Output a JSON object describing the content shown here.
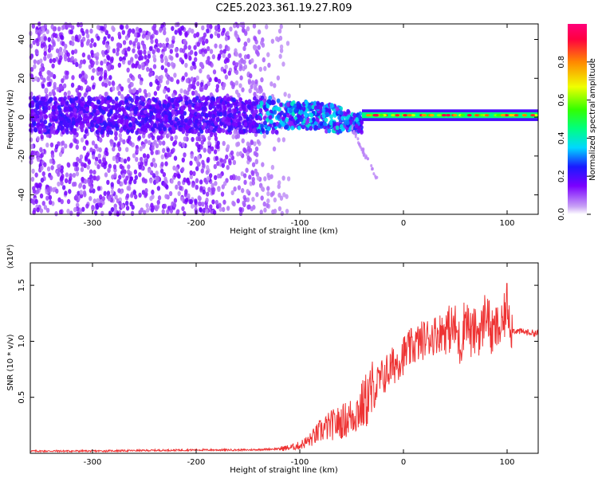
{
  "title": "C2E5.2023.361.19.27.R09",
  "chart_data": [
    {
      "type": "heatmap",
      "xlabel": "Height of straight line (km)",
      "ylabel": "Frequency (Hz)",
      "xlim": [
        -360,
        130
      ],
      "ylim": [
        -50,
        48
      ],
      "xticks": [
        -300,
        -200,
        -100,
        0,
        100
      ],
      "yticks": [
        -40,
        -20,
        0,
        20,
        40
      ],
      "colorbar": {
        "label": "Normalized spectral amplitude",
        "range": [
          0,
          1
        ],
        "ticks": [
          0.0,
          0.2,
          0.4,
          0.6,
          0.8
        ]
      },
      "features": {
        "band_center_hz": 1,
        "broad_noise_x_range": [
          -360,
          -120
        ],
        "transition_x": [
          -120,
          -40
        ],
        "narrow_band_x_range": [
          -40,
          130
        ]
      }
    },
    {
      "type": "line",
      "xlabel": "Height of straight line (km)",
      "ylabel": "SNR (10 * v/v)",
      "yexponent": "(x10⁴)",
      "xlim": [
        -360,
        130
      ],
      "ylim": [
        0,
        1.7
      ],
      "xticks": [
        -300,
        -200,
        -100,
        0,
        100
      ],
      "yticks": [
        0.5,
        1.0,
        1.5
      ],
      "color": "#ee3333",
      "series": [
        {
          "x": [
            -360,
            -300,
            -200,
            -150,
            -120,
            -110,
            -100,
            -90,
            -80,
            -70,
            -60,
            -50,
            -40,
            -30,
            -20,
            -10,
            0,
            10,
            20,
            30,
            40,
            50,
            55,
            60,
            65,
            70,
            75,
            80,
            85,
            90,
            95,
            100,
            105,
            110,
            120,
            130
          ],
          "values": [
            0.02,
            0.02,
            0.03,
            0.03,
            0.04,
            0.05,
            0.07,
            0.12,
            0.2,
            0.25,
            0.28,
            0.33,
            0.42,
            0.55,
            0.68,
            0.78,
            0.88,
            0.96,
            1.02,
            1.06,
            1.1,
            1.12,
            0.95,
            1.25,
            1.05,
            1.1,
            1.08,
            1.3,
            1.05,
            1.12,
            1.1,
            1.35,
            1.1,
            1.09,
            1.08,
            1.07
          ]
        }
      ]
    }
  ]
}
